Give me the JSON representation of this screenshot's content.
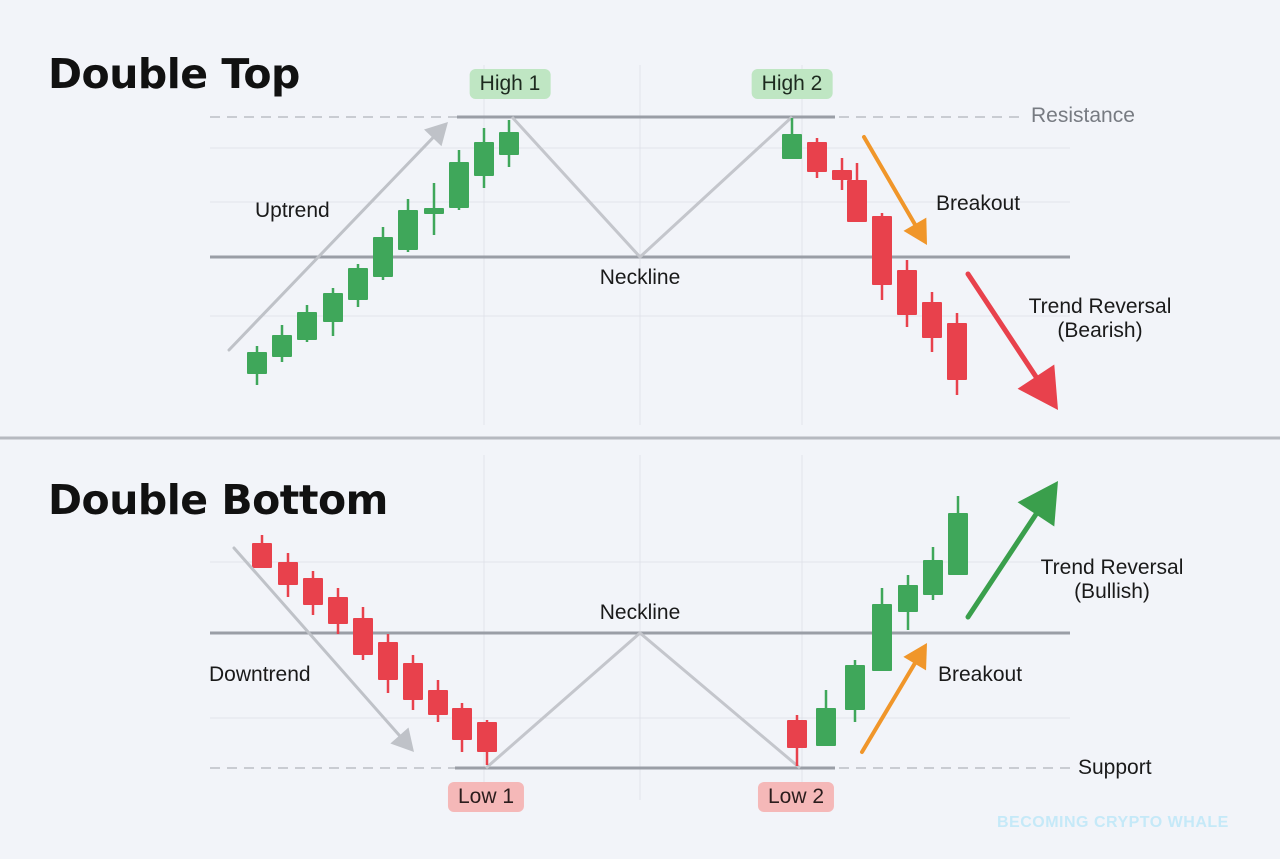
{
  "colors": {
    "bull": "#3fa75a",
    "bear": "#e8414c",
    "arrow_gray": "#bfc2c8",
    "arrow_orange": "#f0962a",
    "arrow_red": "#e8414c",
    "arrow_green": "#3a9f4c",
    "neckline": "#9a9ea6",
    "dashed": "#c9ccd2",
    "zigzag": "#c4c6cc",
    "grid": "#e1e3ea",
    "divider": "#b6b9c0"
  },
  "double_top": {
    "title": "Double Top",
    "high1": "High 1",
    "high2": "High 2",
    "resistance": "Resistance",
    "uptrend": "Uptrend",
    "neckline": "Neckline",
    "breakout": "Breakout",
    "reversal_line1": "Trend Reversal",
    "reversal_line2": "(Bearish)"
  },
  "double_bottom": {
    "title": "Double Bottom",
    "low1": "Low 1",
    "low2": "Low 2",
    "support": "Support",
    "downtrend": "Downtrend",
    "neckline": "Neckline",
    "breakout": "Breakout",
    "reversal_line1": "Trend Reversal",
    "reversal_line2": "(Bullish)"
  },
  "watermark": "BECOMING CRYPTO WHALE"
}
